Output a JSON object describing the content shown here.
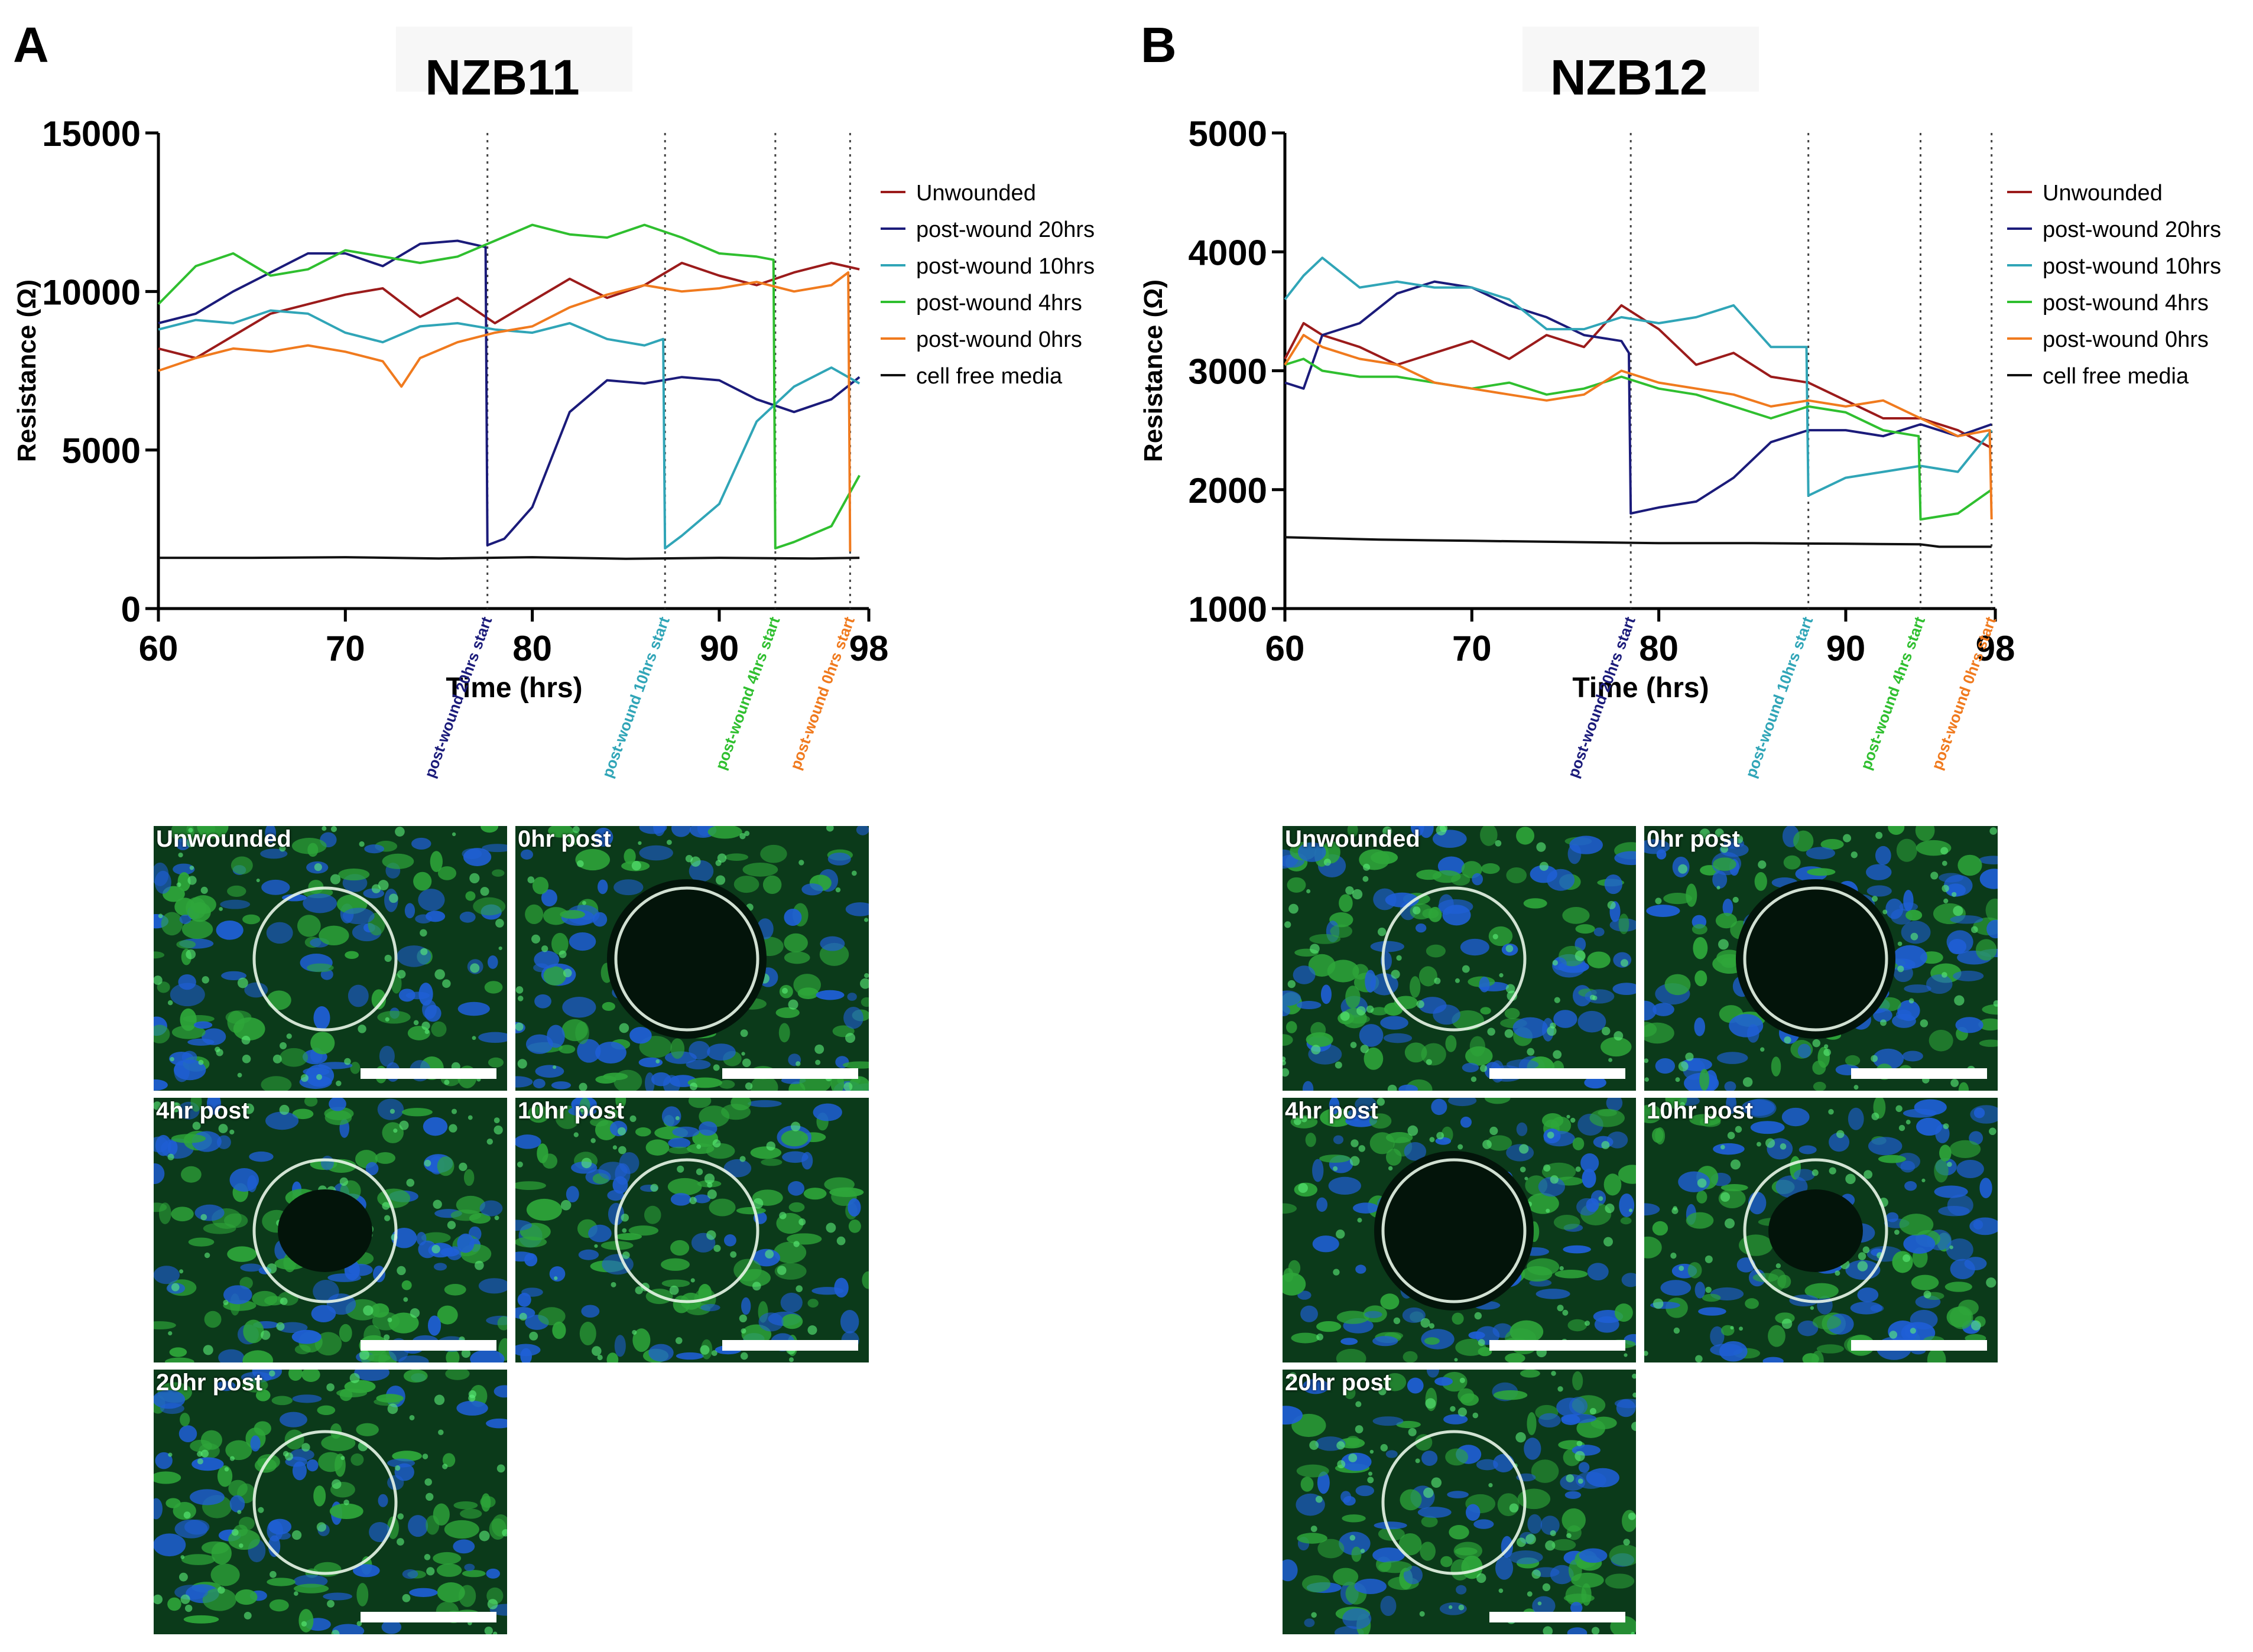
{
  "panels": [
    {
      "letter": "A",
      "title": "NZB11"
    },
    {
      "letter": "B",
      "title": "NZB12"
    }
  ],
  "colors": {
    "unwounded": "#9b1b1b",
    "pw20": "#1b1b7a",
    "pw10": "#30a5b7",
    "pw4": "#2fbf2f",
    "pw0": "#f07a1e",
    "cellfree": "#111111"
  },
  "chart_data": [
    {
      "type": "line",
      "title": "NZB11",
      "xlabel": "Time (hrs)",
      "ylabel": "Resistance (Ω)",
      "xlim": [
        60,
        98
      ],
      "ylim": [
        0,
        15000
      ],
      "xticks": [
        "60",
        "70",
        "80",
        "90",
        "98"
      ],
      "xtick_values": [
        60,
        70,
        80,
        90,
        98
      ],
      "yticks": [
        "0",
        "5000",
        "10000",
        "15000"
      ],
      "ytick_values": [
        0,
        5000,
        10000,
        15000
      ],
      "markers": [
        {
          "x": 77.6,
          "label": "post-wound 20hrs start",
          "series": "pw20"
        },
        {
          "x": 87.1,
          "label": "post-wound 10hrs start",
          "series": "pw10"
        },
        {
          "x": 93.0,
          "label": "post-wound 4hrs start",
          "series": "pw4"
        },
        {
          "x": 97.0,
          "label": "post-wound 0hrs start",
          "series": "pw0"
        }
      ],
      "series": [
        {
          "key": "unwounded",
          "name": "Unwounded",
          "x": [
            60,
            62,
            64,
            66,
            68,
            70,
            72,
            74,
            76,
            78,
            80,
            82,
            84,
            86,
            88,
            90,
            92,
            94,
            96,
            97.5
          ],
          "y": [
            8200,
            7900,
            8600,
            9300,
            9600,
            9900,
            10100,
            9200,
            9800,
            9000,
            9700,
            10400,
            9800,
            10200,
            10900,
            10500,
            10200,
            10600,
            10900,
            10700
          ]
        },
        {
          "key": "pw20",
          "name": "post-wound 20hrs",
          "x": [
            60,
            62,
            64,
            66,
            68,
            70,
            72,
            74,
            76,
            77.5,
            77.6,
            78.5,
            80,
            82,
            84,
            86,
            88,
            90,
            92,
            94,
            96,
            97.5
          ],
          "y": [
            9000,
            9300,
            10000,
            10600,
            11200,
            11200,
            10800,
            11500,
            11600,
            11400,
            2000,
            2200,
            3200,
            6200,
            7200,
            7100,
            7300,
            7200,
            6600,
            6200,
            6600,
            7300
          ]
        },
        {
          "key": "pw10",
          "name": "post-wound 10hrs",
          "x": [
            60,
            62,
            64,
            66,
            68,
            70,
            72,
            74,
            76,
            78,
            80,
            82,
            84,
            86,
            87.0,
            87.1,
            88,
            90,
            92,
            94,
            96,
            97.5
          ],
          "y": [
            8800,
            9100,
            9000,
            9400,
            9300,
            8700,
            8400,
            8900,
            9000,
            8800,
            8700,
            9000,
            8500,
            8300,
            8500,
            1900,
            2300,
            3300,
            5900,
            7000,
            7600,
            7100
          ]
        },
        {
          "key": "pw4",
          "name": "post-wound 4hrs",
          "x": [
            60,
            62,
            64,
            66,
            68,
            70,
            72,
            74,
            76,
            78,
            80,
            82,
            84,
            86,
            88,
            90,
            92,
            92.9,
            93.0,
            94,
            96,
            97.5
          ],
          "y": [
            9600,
            10800,
            11200,
            10500,
            10700,
            11300,
            11100,
            10900,
            11100,
            11600,
            12100,
            11800,
            11700,
            12100,
            11700,
            11200,
            11100,
            11000,
            1900,
            2100,
            2600,
            4200
          ]
        },
        {
          "key": "pw0",
          "name": "post-wound 0hrs",
          "x": [
            60,
            62,
            64,
            66,
            68,
            70,
            72,
            73,
            74,
            76,
            78,
            80,
            82,
            84,
            86,
            88,
            90,
            92,
            94,
            96,
            96.9,
            97.0
          ],
          "y": [
            7500,
            7900,
            8200,
            8100,
            8300,
            8100,
            7800,
            7000,
            7900,
            8400,
            8700,
            8900,
            9500,
            9900,
            10200,
            10000,
            10100,
            10300,
            10000,
            10200,
            10600,
            1800
          ]
        },
        {
          "key": "cellfree",
          "name": "cell free media",
          "x": [
            60,
            65,
            70,
            75,
            80,
            85,
            90,
            95,
            97.5
          ],
          "y": [
            1600,
            1600,
            1620,
            1580,
            1620,
            1570,
            1600,
            1580,
            1600
          ]
        }
      ]
    },
    {
      "type": "line",
      "title": "NZB12",
      "xlabel": "Time (hrs)",
      "ylabel": "Resistance (Ω)",
      "xlim": [
        60,
        98
      ],
      "ylim": [
        1000,
        5000
      ],
      "xticks": [
        "60",
        "70",
        "80",
        "90",
        "98"
      ],
      "xtick_values": [
        60,
        70,
        80,
        90,
        98
      ],
      "yticks": [
        "1000",
        "2000",
        "3000",
        "4000",
        "5000"
      ],
      "ytick_values": [
        1000,
        2000,
        3000,
        4000,
        5000
      ],
      "markers": [
        {
          "x": 78.5,
          "label": "post-wound 20hrs start",
          "series": "pw20"
        },
        {
          "x": 88.0,
          "label": "post-wound 10hrs start",
          "series": "pw10"
        },
        {
          "x": 94.0,
          "label": "post-wound 4hrs start",
          "series": "pw4"
        },
        {
          "x": 97.8,
          "label": "post-wound 0hrs start",
          "series": "pw0"
        }
      ],
      "series": [
        {
          "key": "unwounded",
          "name": "Unwounded",
          "x": [
            60,
            61,
            62,
            64,
            66,
            68,
            70,
            72,
            74,
            76,
            78,
            80,
            82,
            84,
            86,
            88,
            90,
            92,
            94,
            96,
            97.8
          ],
          "y": [
            3100,
            3400,
            3300,
            3200,
            3050,
            3150,
            3250,
            3100,
            3300,
            3200,
            3550,
            3350,
            3050,
            3150,
            2950,
            2900,
            2750,
            2600,
            2600,
            2500,
            2350
          ]
        },
        {
          "key": "pw20",
          "name": "post-wound 20hrs",
          "x": [
            60,
            61,
            62,
            64,
            66,
            68,
            70,
            72,
            74,
            76,
            78,
            78.4,
            78.5,
            80,
            82,
            84,
            86,
            88,
            90,
            92,
            94,
            96,
            97.8
          ],
          "y": [
            2900,
            2850,
            3300,
            3400,
            3650,
            3750,
            3700,
            3550,
            3450,
            3300,
            3250,
            3150,
            1800,
            1850,
            1900,
            2100,
            2400,
            2500,
            2500,
            2450,
            2550,
            2450,
            2550
          ]
        },
        {
          "key": "pw10",
          "name": "post-wound 10hrs",
          "x": [
            60,
            61,
            62,
            64,
            66,
            68,
            70,
            72,
            74,
            76,
            78,
            80,
            82,
            84,
            86,
            87.9,
            88.0,
            90,
            92,
            94,
            96,
            97.8
          ],
          "y": [
            3600,
            3800,
            3950,
            3700,
            3750,
            3700,
            3700,
            3600,
            3350,
            3350,
            3450,
            3400,
            3450,
            3550,
            3200,
            3200,
            1950,
            2100,
            2150,
            2200,
            2150,
            2500
          ]
        },
        {
          "key": "pw4",
          "name": "post-wound 4hrs",
          "x": [
            60,
            61,
            62,
            64,
            66,
            68,
            70,
            72,
            74,
            76,
            78,
            80,
            82,
            84,
            86,
            88,
            90,
            92,
            93.9,
            94.0,
            96,
            97.8
          ],
          "y": [
            3050,
            3100,
            3000,
            2950,
            2950,
            2900,
            2850,
            2900,
            2800,
            2850,
            2950,
            2850,
            2800,
            2700,
            2600,
            2700,
            2650,
            2500,
            2450,
            1750,
            1800,
            2000
          ]
        },
        {
          "key": "pw0",
          "name": "post-wound 0hrs",
          "x": [
            60,
            61,
            62,
            64,
            66,
            68,
            70,
            72,
            74,
            76,
            78,
            80,
            82,
            84,
            86,
            88,
            90,
            92,
            94,
            96,
            97.7,
            97.8
          ],
          "y": [
            3050,
            3300,
            3200,
            3100,
            3050,
            2900,
            2850,
            2800,
            2750,
            2800,
            3000,
            2900,
            2850,
            2800,
            2700,
            2750,
            2700,
            2750,
            2600,
            2450,
            2500,
            1750
          ]
        },
        {
          "key": "cellfree",
          "name": "cell free media",
          "x": [
            60,
            65,
            70,
            75,
            80,
            85,
            90,
            94,
            95,
            97.8
          ],
          "y": [
            1600,
            1580,
            1570,
            1560,
            1550,
            1550,
            1545,
            1540,
            1520,
            1520
          ]
        }
      ]
    }
  ],
  "micrographs": [
    {
      "tiles": [
        {
          "label": "Unwounded",
          "state": "closed"
        },
        {
          "label": "0hr post",
          "state": "open"
        },
        {
          "label": "4hr post",
          "state": "partial"
        },
        {
          "label": "10hr post",
          "state": "closed"
        },
        {
          "label": "20hr post",
          "state": "closed"
        }
      ]
    },
    {
      "tiles": [
        {
          "label": "Unwounded",
          "state": "closed"
        },
        {
          "label": "0hr post",
          "state": "open"
        },
        {
          "label": "4hr post",
          "state": "open"
        },
        {
          "label": "10hr post",
          "state": "partial"
        },
        {
          "label": "20hr post",
          "state": "closed"
        }
      ]
    }
  ]
}
